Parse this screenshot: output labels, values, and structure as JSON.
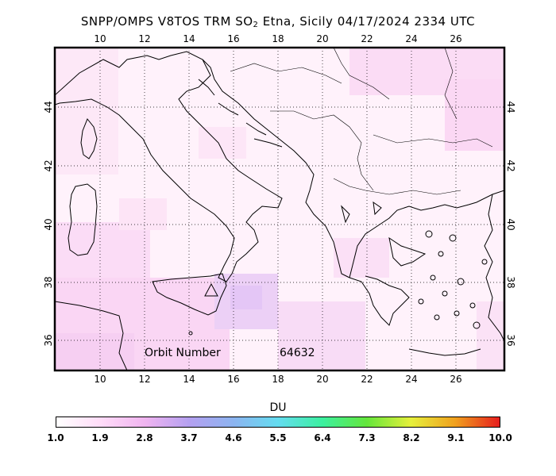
{
  "title": {
    "prefix": "SNPP/OMPS V8TOS TRM SO",
    "subscript": "2",
    "suffix": " Etna, Sicily 04/17/2024 2334 UTC"
  },
  "map": {
    "lon_ticks": [
      "10",
      "12",
      "14",
      "16",
      "18",
      "20",
      "22",
      "24",
      "26"
    ],
    "lat_ticks": [
      "36",
      "38",
      "40",
      "42",
      "44"
    ],
    "orbit_label": "Orbit Number",
    "orbit_number": "64632",
    "volcano_marker": "triangle"
  },
  "colorbar": {
    "title": "DU",
    "ticks": [
      "1.0",
      "1.9",
      "2.8",
      "3.7",
      "4.6",
      "5.5",
      "6.4",
      "7.3",
      "8.2",
      "9.1",
      "10.0"
    ]
  }
}
